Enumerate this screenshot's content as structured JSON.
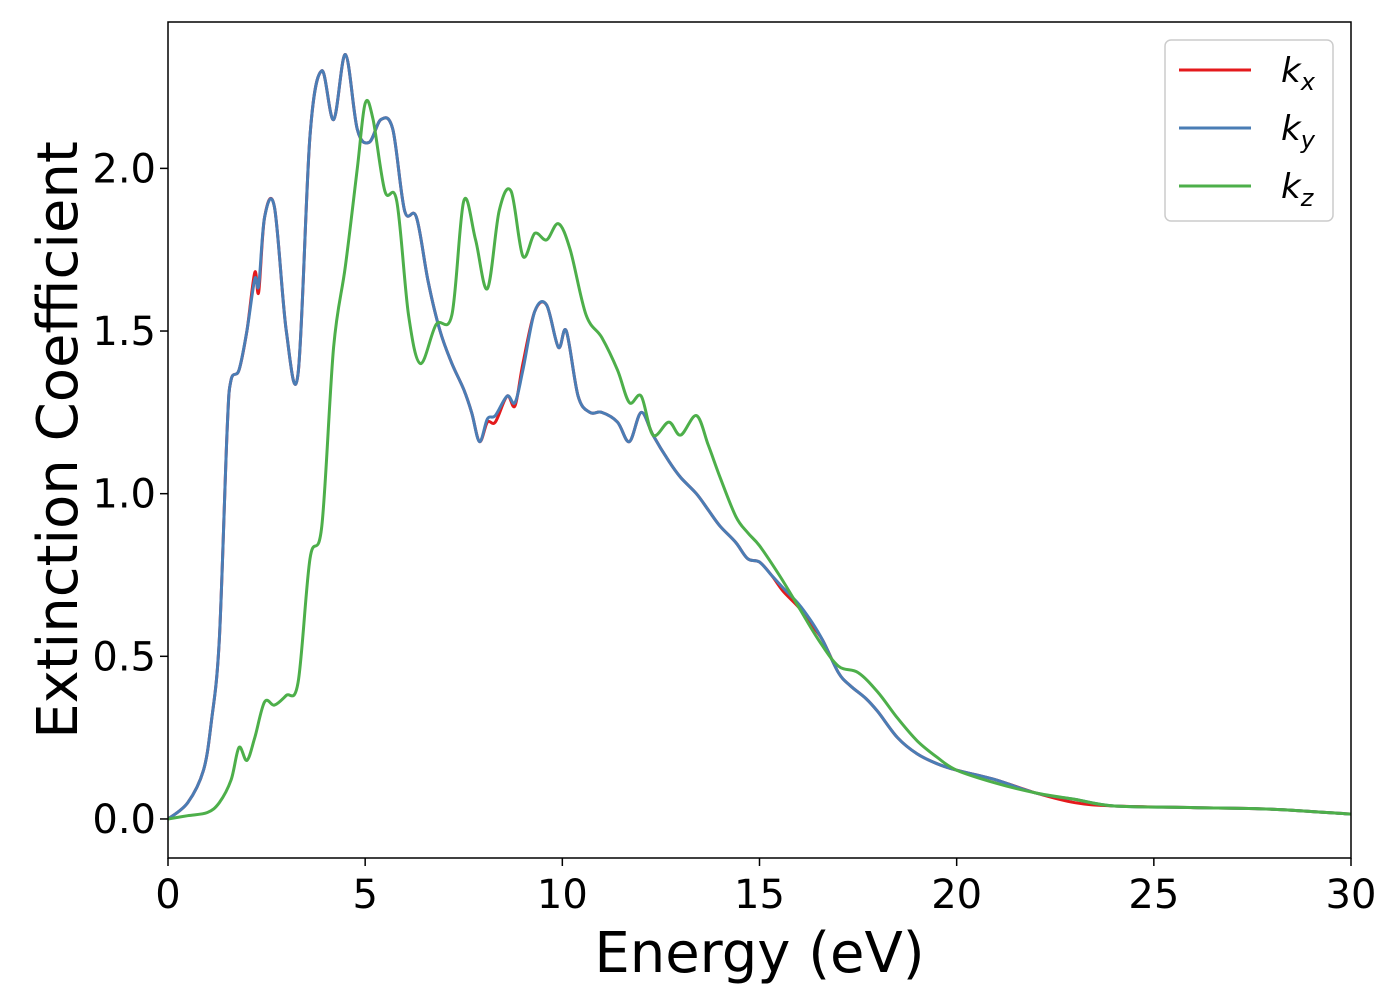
{
  "chart_data": {
    "type": "line",
    "title": "",
    "xlabel": "Energy (eV)",
    "ylabel": "Extinction Coefficient",
    "xlim": [
      0,
      30
    ],
    "ylim": [
      -0.12,
      2.45
    ],
    "xticks": [
      0,
      5,
      10,
      15,
      20,
      25,
      30
    ],
    "yticks": [
      0.0,
      0.5,
      1.0,
      1.5,
      2.0
    ],
    "xtick_labels": [
      "0",
      "5",
      "10",
      "15",
      "20",
      "25",
      "30"
    ],
    "ytick_labels": [
      "0.0",
      "0.5",
      "1.0",
      "1.5",
      "2.0"
    ],
    "grid": false,
    "legend_position": "top-right",
    "series": [
      {
        "name": "k",
        "subscript": "x",
        "color": "#e41a1c",
        "x": [
          0,
          0.5,
          0.9,
          1.1,
          1.3,
          1.5,
          1.6,
          1.8,
          2.0,
          2.2,
          2.3,
          2.45,
          2.7,
          3.0,
          3.3,
          3.6,
          3.9,
          4.2,
          4.5,
          4.8,
          5.1,
          5.4,
          5.7,
          6.0,
          6.3,
          6.6,
          6.9,
          7.2,
          7.5,
          7.7,
          7.9,
          8.1,
          8.3,
          8.6,
          8.8,
          9.0,
          9.3,
          9.6,
          9.9,
          10.1,
          10.4,
          10.7,
          11.0,
          11.4,
          11.7,
          12.0,
          12.3,
          12.7,
          13.0,
          13.4,
          13.7,
          14.0,
          14.4,
          14.7,
          15.0,
          15.3,
          15.6,
          16.0,
          16.3,
          16.6,
          17.0,
          17.3,
          17.7,
          18.0,
          18.5,
          19.0,
          19.5,
          20.0,
          21.0,
          22.0,
          23.0,
          24.0,
          26.0,
          28.0,
          30.0
        ],
        "y": [
          0.0,
          0.05,
          0.15,
          0.3,
          0.55,
          1.2,
          1.35,
          1.38,
          1.5,
          1.68,
          1.62,
          1.85,
          1.88,
          1.5,
          1.37,
          2.1,
          2.3,
          2.15,
          2.35,
          2.12,
          2.08,
          2.15,
          2.12,
          1.87,
          1.85,
          1.65,
          1.5,
          1.4,
          1.32,
          1.25,
          1.16,
          1.22,
          1.22,
          1.3,
          1.27,
          1.4,
          1.56,
          1.58,
          1.45,
          1.5,
          1.3,
          1.25,
          1.25,
          1.22,
          1.16,
          1.25,
          1.18,
          1.1,
          1.05,
          1.0,
          0.95,
          0.9,
          0.85,
          0.8,
          0.79,
          0.75,
          0.7,
          0.65,
          0.6,
          0.55,
          0.45,
          0.41,
          0.37,
          0.33,
          0.25,
          0.2,
          0.17,
          0.15,
          0.12,
          0.08,
          0.05,
          0.04,
          0.035,
          0.03,
          0.015
        ]
      },
      {
        "name": "k",
        "subscript": "y",
        "color": "#4a7db5",
        "x": [
          0,
          0.5,
          0.9,
          1.1,
          1.3,
          1.5,
          1.6,
          1.8,
          2.0,
          2.2,
          2.3,
          2.45,
          2.7,
          3.0,
          3.3,
          3.6,
          3.9,
          4.2,
          4.5,
          4.8,
          5.1,
          5.4,
          5.7,
          6.0,
          6.3,
          6.6,
          6.9,
          7.2,
          7.5,
          7.7,
          7.9,
          8.1,
          8.3,
          8.6,
          8.8,
          9.0,
          9.3,
          9.6,
          9.9,
          10.1,
          10.4,
          10.7,
          11.0,
          11.4,
          11.7,
          12.0,
          12.3,
          12.7,
          13.0,
          13.4,
          13.7,
          14.0,
          14.4,
          14.7,
          15.0,
          15.3,
          15.6,
          16.0,
          16.3,
          16.6,
          17.0,
          17.3,
          17.7,
          18.0,
          18.5,
          19.0,
          19.5,
          20.0,
          21.0,
          22.0,
          23.0,
          24.0,
          26.0,
          28.0,
          30.0
        ],
        "y": [
          0.0,
          0.05,
          0.15,
          0.3,
          0.55,
          1.2,
          1.35,
          1.38,
          1.5,
          1.66,
          1.64,
          1.85,
          1.88,
          1.5,
          1.37,
          2.1,
          2.3,
          2.15,
          2.35,
          2.12,
          2.08,
          2.15,
          2.12,
          1.87,
          1.85,
          1.65,
          1.5,
          1.4,
          1.32,
          1.25,
          1.16,
          1.23,
          1.24,
          1.3,
          1.28,
          1.38,
          1.56,
          1.58,
          1.45,
          1.5,
          1.3,
          1.25,
          1.25,
          1.22,
          1.16,
          1.25,
          1.18,
          1.1,
          1.05,
          1.0,
          0.95,
          0.9,
          0.85,
          0.8,
          0.79,
          0.75,
          0.71,
          0.66,
          0.61,
          0.55,
          0.45,
          0.41,
          0.37,
          0.33,
          0.25,
          0.2,
          0.17,
          0.15,
          0.12,
          0.08,
          0.06,
          0.04,
          0.035,
          0.03,
          0.015
        ]
      },
      {
        "name": "k",
        "subscript": "z",
        "color": "#4daf4a",
        "x": [
          0,
          0.5,
          1.0,
          1.3,
          1.6,
          1.8,
          2.0,
          2.2,
          2.45,
          2.7,
          3.0,
          3.3,
          3.6,
          3.9,
          4.2,
          4.5,
          4.8,
          5.0,
          5.2,
          5.5,
          5.8,
          6.1,
          6.4,
          6.8,
          7.2,
          7.5,
          7.8,
          8.1,
          8.4,
          8.7,
          9.0,
          9.3,
          9.6,
          9.9,
          10.2,
          10.6,
          11.0,
          11.4,
          11.7,
          12.0,
          12.3,
          12.7,
          13.0,
          13.4,
          13.7,
          14.0,
          14.4,
          14.7,
          15.0,
          15.5,
          16.0,
          16.5,
          17.0,
          17.5,
          18.0,
          18.5,
          19.0,
          19.5,
          20.0,
          21.0,
          22.0,
          23.0,
          24.0,
          26.0,
          28.0,
          30.0
        ],
        "y": [
          0.0,
          0.01,
          0.02,
          0.05,
          0.12,
          0.22,
          0.18,
          0.25,
          0.36,
          0.35,
          0.38,
          0.42,
          0.8,
          0.9,
          1.45,
          1.7,
          2.0,
          2.2,
          2.15,
          1.93,
          1.9,
          1.55,
          1.4,
          1.52,
          1.55,
          1.9,
          1.78,
          1.63,
          1.87,
          1.93,
          1.73,
          1.8,
          1.78,
          1.83,
          1.75,
          1.55,
          1.48,
          1.38,
          1.28,
          1.3,
          1.18,
          1.22,
          1.18,
          1.24,
          1.15,
          1.05,
          0.93,
          0.88,
          0.84,
          0.75,
          0.65,
          0.55,
          0.47,
          0.45,
          0.39,
          0.31,
          0.24,
          0.19,
          0.15,
          0.11,
          0.08,
          0.06,
          0.04,
          0.035,
          0.03,
          0.015
        ]
      }
    ]
  }
}
